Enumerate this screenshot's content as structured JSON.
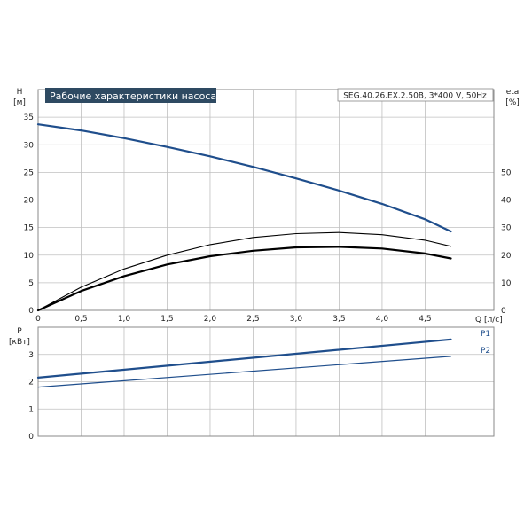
{
  "title": "Рабочие характеристики насоса",
  "model": "SEG.40.26.EX.2.50B, 3*400 V, 50Hz",
  "colors": {
    "blue": "#1f4e8c",
    "black": "#000000",
    "grid": "#c0c0c0",
    "title_bg": "#2e4a62"
  },
  "chart_data": [
    {
      "type": "line",
      "panel": "top",
      "x_label": "Q [л/с]",
      "y_label": "H",
      "y_unit": "[м]",
      "y2_label": "eta",
      "y2_unit": "[%]",
      "xlim": [
        0,
        5.3
      ],
      "ylim": [
        0,
        40
      ],
      "y2lim": [
        0,
        50
      ],
      "x_ticks": [
        "0",
        "0,5",
        "1,0",
        "1,5",
        "2,0",
        "2,5",
        "3,0",
        "3,5",
        "4,0",
        "4,5"
      ],
      "x_tick_values": [
        0,
        0.5,
        1.0,
        1.5,
        2.0,
        2.5,
        3.0,
        3.5,
        4.0,
        4.5
      ],
      "y_ticks": [
        "0",
        "5",
        "10",
        "15",
        "20",
        "25",
        "30",
        "35"
      ],
      "y_tick_values": [
        0,
        5,
        10,
        15,
        20,
        25,
        30,
        35
      ],
      "y2_ticks": [
        "0",
        "10",
        "20",
        "30",
        "40",
        "50"
      ],
      "y2_tick_values": [
        0,
        10,
        20,
        30,
        40,
        50
      ],
      "series": [
        {
          "axis": "y",
          "style": "blue-thick",
          "x": [
            0,
            0.5,
            1.0,
            1.5,
            2.0,
            2.5,
            3.0,
            3.5,
            4.0,
            4.5,
            4.8
          ],
          "values": [
            33.7,
            32.6,
            31.2,
            29.6,
            27.9,
            26.0,
            23.9,
            21.7,
            19.3,
            16.5,
            14.3
          ]
        },
        {
          "axis": "y",
          "style": "black-thin",
          "x": [
            0,
            0.5,
            1.0,
            1.5,
            2.0,
            2.5,
            3.0,
            3.5,
            4.0,
            4.5,
            4.8
          ],
          "values": [
            0,
            4.2,
            7.5,
            10.0,
            11.9,
            13.2,
            13.9,
            14.1,
            13.7,
            12.7,
            11.6
          ]
        },
        {
          "axis": "y",
          "style": "black-thick",
          "x": [
            0,
            0.5,
            1.0,
            1.5,
            2.0,
            2.5,
            3.0,
            3.5,
            4.0,
            4.5,
            4.8
          ],
          "values": [
            0,
            3.5,
            6.2,
            8.3,
            9.8,
            10.8,
            11.4,
            11.5,
            11.2,
            10.3,
            9.4
          ]
        }
      ]
    },
    {
      "type": "line",
      "panel": "bottom",
      "y_label": "P",
      "y_unit": "[кВт]",
      "xlim": [
        0,
        5.3
      ],
      "ylim": [
        0,
        4
      ],
      "x_tick_values": [
        0,
        0.5,
        1.0,
        1.5,
        2.0,
        2.5,
        3.0,
        3.5,
        4.0,
        4.5
      ],
      "y_ticks": [
        "0",
        "1",
        "2",
        "3"
      ],
      "y_tick_values": [
        0,
        1,
        2,
        3
      ],
      "series": [
        {
          "name": "P1",
          "style": "blue-thick",
          "x": [
            0,
            4.8
          ],
          "values": [
            2.15,
            3.55
          ]
        },
        {
          "name": "P2",
          "style": "blue-thin",
          "x": [
            0,
            4.8
          ],
          "values": [
            1.8,
            2.93
          ]
        }
      ]
    }
  ]
}
